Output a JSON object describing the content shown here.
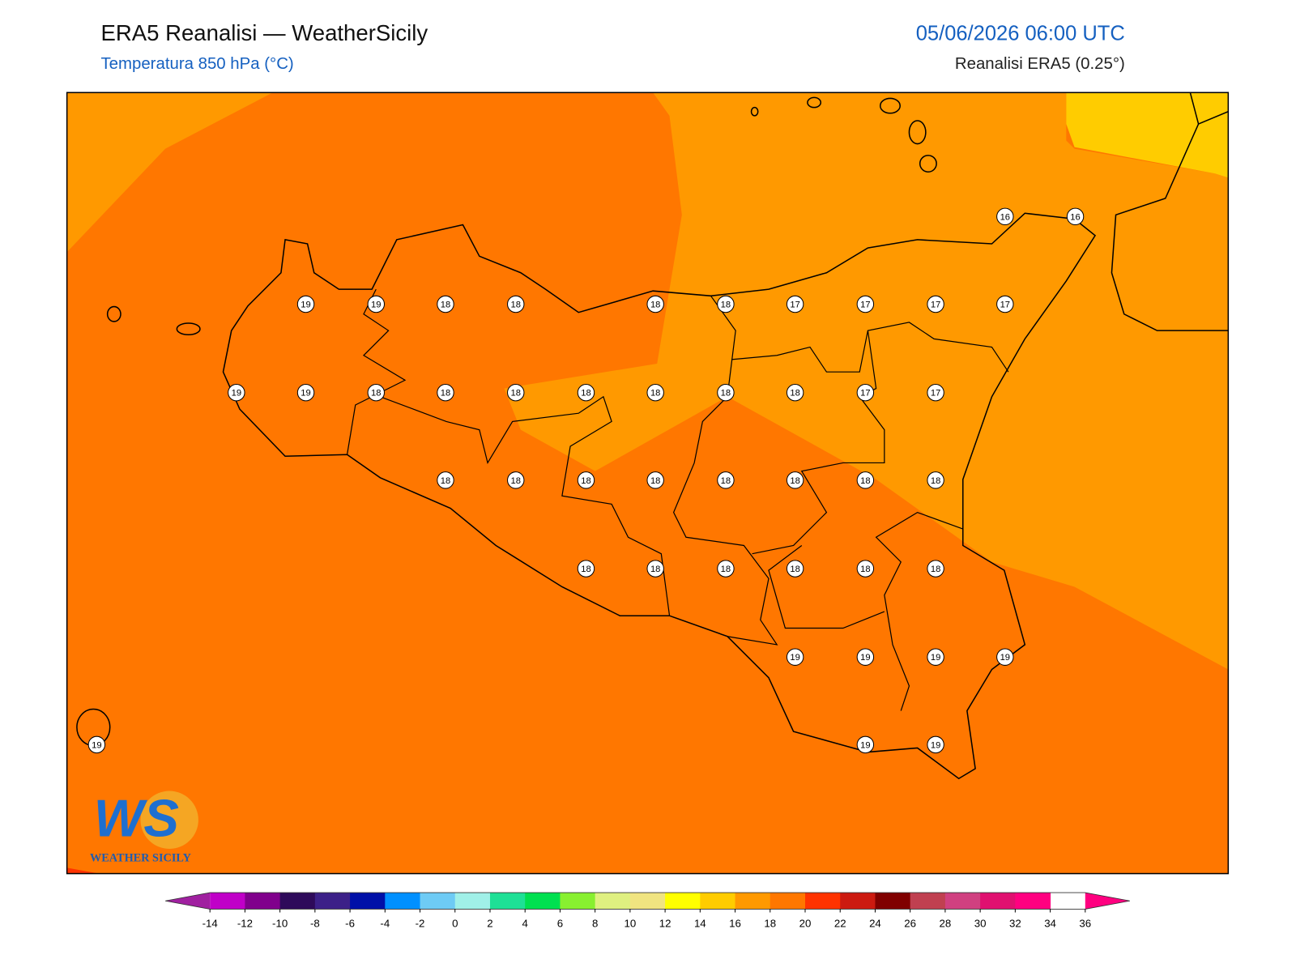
{
  "header": {
    "title": "ERA5 Reanalisi — WeatherSicily",
    "subtitle": "Temperatura 850 hPa (°C)",
    "datetime": "05/06/2026 06:00 UTC",
    "source": "Reanalisi ERA5 (0.25°)"
  },
  "stations": [
    16,
    16,
    19,
    19,
    18,
    18,
    18,
    18,
    17,
    17,
    17,
    17,
    19,
    19,
    18,
    18,
    18,
    18,
    18,
    18,
    18,
    17,
    17,
    18,
    18,
    18,
    18,
    18,
    18,
    18,
    18,
    18,
    18,
    18,
    18,
    18,
    18,
    19,
    19,
    19,
    19,
    19,
    19,
    19
  ],
  "colorbar": {
    "ticks": [
      -14,
      -12,
      -10,
      -8,
      -6,
      -4,
      -2,
      0,
      2,
      4,
      6,
      8,
      10,
      12,
      14,
      16,
      18,
      20,
      22,
      24,
      26,
      28,
      30,
      32,
      34,
      36
    ],
    "colors": [
      "#c000c8",
      "#80008c",
      "#2e0a5a",
      "#3c2088",
      "#0010a8",
      "#0090ff",
      "#6ecbf5",
      "#a0f0e8",
      "#1ee096",
      "#00e050",
      "#88f030",
      "#dff080",
      "#f0e480",
      "#ffff00",
      "#ffcc00",
      "#ff9900",
      "#ff7700",
      "#ff3300",
      "#cc1a10",
      "#800000",
      "#c04050",
      "#d04080",
      "#e01070",
      "#ff0080"
    ],
    "under": "#a020a0",
    "over": "#ff0080"
  },
  "logo": {
    "mark": "WS",
    "name": "WEATHER SICILY"
  }
}
